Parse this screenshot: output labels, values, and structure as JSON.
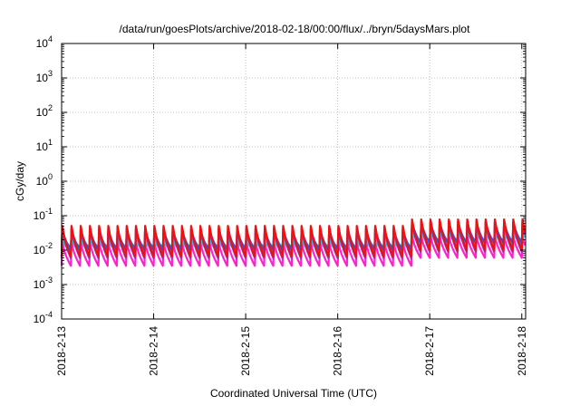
{
  "chart_data": {
    "type": "line",
    "title": "/data/run/goesPlots/archive/2018-02-18/00:00/flux/../bryn/5daysMars.plot",
    "xlabel": "Coordinated Universal Time (UTC)",
    "ylabel": "cGy/day",
    "yscale": "log",
    "ylim": [
      0.0001,
      10000
    ],
    "y_ticks": [
      {
        "base": "10",
        "exp": "-4",
        "value": 0.0001
      },
      {
        "base": "10",
        "exp": "-3",
        "value": 0.001
      },
      {
        "base": "10",
        "exp": "-2",
        "value": 0.01
      },
      {
        "base": "10",
        "exp": "-1",
        "value": 0.1
      },
      {
        "base": "10",
        "exp": "0",
        "value": 1
      },
      {
        "base": "10",
        "exp": "1",
        "value": 10
      },
      {
        "base": "10",
        "exp": "2",
        "value": 100
      },
      {
        "base": "10",
        "exp": "3",
        "value": 1000
      },
      {
        "base": "10",
        "exp": "4",
        "value": 10000
      }
    ],
    "xlim": [
      "2018-02-13T00:00",
      "2018-02-18T01:00"
    ],
    "x_ticks": [
      {
        "label": "2018-2-13",
        "date": "2018-02-13T00:00"
      },
      {
        "label": "2018-2-14",
        "date": "2018-02-14T00:00"
      },
      {
        "label": "2018-2-15",
        "date": "2018-02-15T00:00"
      },
      {
        "label": "2018-2-16",
        "date": "2018-02-16T00:00"
      },
      {
        "label": "2018-2-17",
        "date": "2018-02-17T00:00"
      },
      {
        "label": "2018-2-18",
        "date": "2018-02-18T00:00"
      }
    ],
    "grid": true,
    "cycle_hours": 2.4,
    "series": [
      {
        "color": "#ee1111",
        "peak": 0.065,
        "trough": 0.0065,
        "strong_peak": 0.1,
        "strong_trough": 0.01
      },
      {
        "color": "#9933bb",
        "peak": 0.055,
        "trough": 0.0058,
        "strong_peak": 0.085,
        "strong_trough": 0.0088
      },
      {
        "color": "#3355dd",
        "peak": 0.048,
        "trough": 0.01,
        "strong_peak": 0.078,
        "strong_trough": 0.016
      },
      {
        "color": "#22aa55",
        "peak": 0.03,
        "trough": 0.012,
        "strong_peak": 0.05,
        "strong_trough": 0.018
      },
      {
        "color": "#33bbdd",
        "peak": 0.022,
        "trough": 0.009,
        "strong_peak": 0.038,
        "strong_trough": 0.014
      },
      {
        "color": "#ff22cc",
        "peak": 0.02,
        "trough": 0.0035,
        "strong_peak": 0.03,
        "strong_trough": 0.006
      }
    ],
    "strong_period_from": "2018-02-16T19:00"
  }
}
